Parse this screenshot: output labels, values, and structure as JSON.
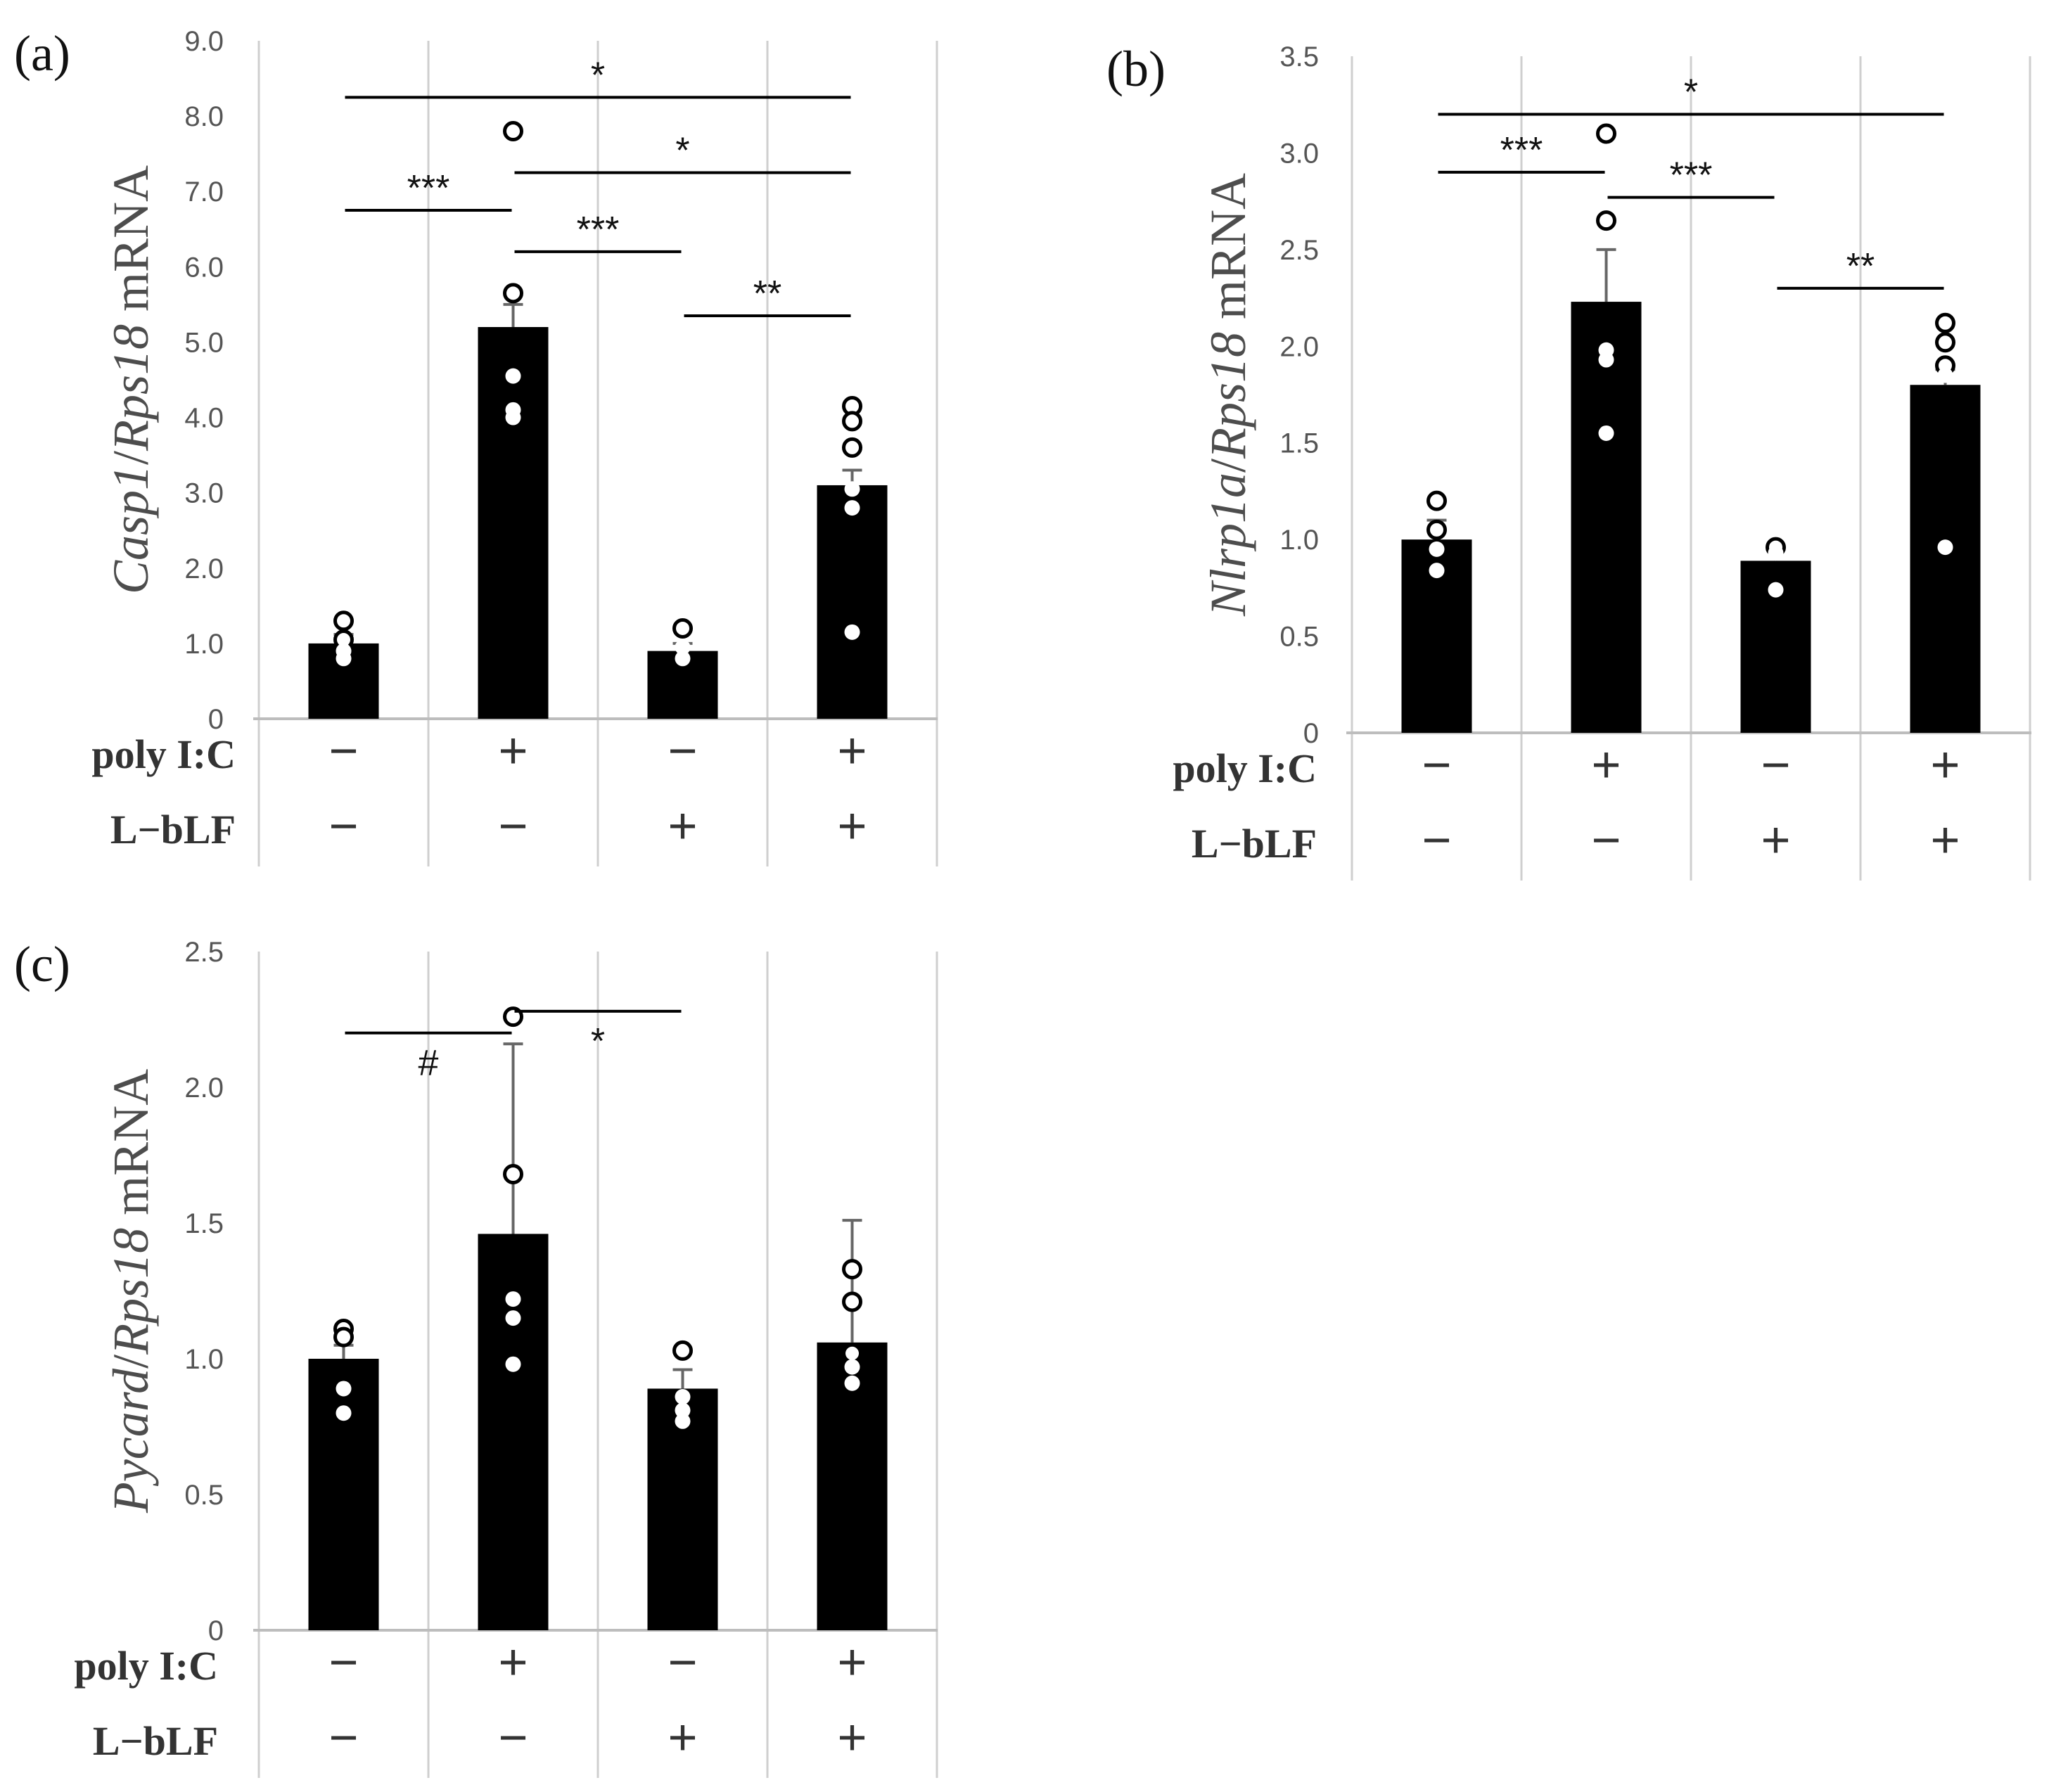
{
  "figure": {
    "row_labels": [
      "poly I:C",
      "L−bLF"
    ]
  },
  "chart_data": [
    {
      "type": "bar",
      "panel_label": "(a)",
      "ylabel_gene": "Casp1",
      "ylabel_sep": "/",
      "ylabel_ref": "Rps18",
      "ylabel_suffix": " mRNA",
      "ylim": [
        0,
        9.0
      ],
      "ticks": [
        0,
        1.0,
        2.0,
        3.0,
        4.0,
        5.0,
        6.0,
        7.0,
        8.0,
        9.0
      ],
      "tick_labels": [
        "0",
        "1.0",
        "2.0",
        "3.0",
        "4.0",
        "5.0",
        "6.0",
        "7.0",
        "8.0",
        "9.0"
      ],
      "poly_ic": [
        "−",
        "+",
        "−",
        "+"
      ],
      "l_blf": [
        "−",
        "−",
        "+",
        "+"
      ],
      "values": [
        1.0,
        5.2,
        0.9,
        3.1
      ],
      "errors": [
        0.12,
        0.3,
        0.1,
        0.2
      ],
      "points": [
        {
          "open": [
            1.3,
            1.05
          ],
          "filled": [
            0.9,
            0.8
          ]
        },
        {
          "open": [
            7.8,
            5.65
          ],
          "filled": [
            4.55,
            4.1,
            4.0
          ]
        },
        {
          "open": [
            1.2
          ],
          "filled": [
            0.95,
            0.8
          ]
        },
        {
          "open": [
            4.15,
            3.95,
            3.6
          ],
          "filled": [
            3.05,
            2.8,
            1.15
          ]
        }
      ],
      "comparisons": [
        {
          "from": 0,
          "to": 3,
          "y": 8.25,
          "label": "*"
        },
        {
          "from": 0,
          "to": 1,
          "y": 6.75,
          "label": "***"
        },
        {
          "from": 1,
          "to": 3,
          "y": 7.25,
          "label": "*"
        },
        {
          "from": 1,
          "to": 2,
          "y": 6.2,
          "label": "***"
        },
        {
          "from": 2,
          "to": 3,
          "y": 5.35,
          "label": "**"
        }
      ]
    },
    {
      "type": "bar",
      "panel_label": "(b)",
      "ylabel_gene": "Nlrp1a",
      "ylabel_sep": "/",
      "ylabel_ref": "Rps18",
      "ylabel_suffix": " mRNA",
      "ylim": [
        0,
        3.5
      ],
      "ticks": [
        0,
        0.5,
        1.0,
        1.5,
        2.0,
        2.5,
        3.0,
        3.5
      ],
      "tick_labels": [
        "0",
        "0.5",
        "1.0",
        "1.5",
        "2.0",
        "2.5",
        "3.0",
        "3.5"
      ],
      "poly_ic": [
        "−",
        "+",
        "−",
        "+"
      ],
      "l_blf": [
        "−",
        "−",
        "+",
        "+"
      ],
      "values": [
        1.0,
        2.23,
        0.89,
        1.8
      ],
      "errors": [
        0.1,
        0.27,
        0.06,
        0.08
      ],
      "points": [
        {
          "open": [
            1.2,
            1.05
          ],
          "filled": [
            0.95,
            0.84
          ]
        },
        {
          "open": [
            3.1,
            2.65
          ],
          "filled": [
            1.98,
            1.93,
            1.55
          ]
        },
        {
          "open": [
            0.96
          ],
          "filled": [
            0.93,
            0.74
          ]
        },
        {
          "open": [
            2.12,
            2.02,
            1.9
          ],
          "filled": [
            1.85,
            0.96
          ]
        }
      ],
      "comparisons": [
        {
          "from": 0,
          "to": 3,
          "y": 3.2,
          "label": "*"
        },
        {
          "from": 0,
          "to": 1,
          "y": 2.9,
          "label": "***"
        },
        {
          "from": 1,
          "to": 2,
          "y": 2.77,
          "label": "***"
        },
        {
          "from": 2,
          "to": 3,
          "y": 2.3,
          "label": "**"
        }
      ]
    },
    {
      "type": "bar",
      "panel_label": "(c)",
      "ylabel_gene": "Pycard",
      "ylabel_sep": "/",
      "ylabel_ref": "Rps18",
      "ylabel_suffix": " mRNA",
      "ylim": [
        0,
        2.5
      ],
      "ticks": [
        0,
        0.5,
        1.0,
        1.5,
        2.0,
        2.5
      ],
      "tick_labels": [
        "0",
        "0.5",
        "1.0",
        "1.5",
        "2.0",
        "2.5"
      ],
      "poly_ic": [
        "−",
        "+",
        "−",
        "+"
      ],
      "l_blf": [
        "−",
        "−",
        "+",
        "+"
      ],
      "values": [
        1.0,
        1.46,
        0.89,
        1.06
      ],
      "errors": [
        0.05,
        0.7,
        0.07,
        0.45
      ],
      "points": [
        {
          "open": [
            1.11,
            1.08
          ],
          "filled": [
            0.89,
            0.8
          ]
        },
        {
          "open": [
            2.26,
            1.68
          ],
          "filled": [
            1.22,
            1.15,
            0.98
          ]
        },
        {
          "open": [
            1.03
          ],
          "filled": [
            0.86,
            0.81,
            0.77
          ]
        },
        {
          "open": [
            1.33,
            1.21,
            1.02
          ],
          "filled": [
            0.97,
            0.91
          ]
        }
      ],
      "comparisons": [
        {
          "from": 0,
          "to": 1,
          "y": 2.2,
          "label": "#",
          "label_pos": "below"
        },
        {
          "from": 1,
          "to": 2,
          "y": 2.28,
          "label": "*",
          "label_pos": "below"
        }
      ]
    }
  ]
}
